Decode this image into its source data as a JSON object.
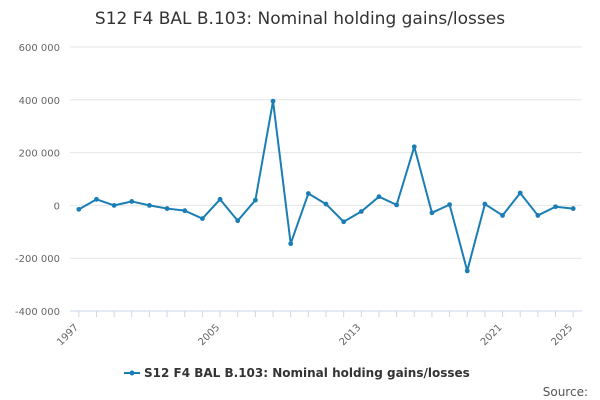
{
  "chart_data": {
    "type": "line",
    "title": "S12 F4 BAL B.103: Nominal holding gains/losses",
    "xlabel": "",
    "ylabel": "",
    "x": [
      1997,
      1998,
      1999,
      2000,
      2001,
      2002,
      2003,
      2004,
      2005,
      2006,
      2007,
      2008,
      2009,
      2010,
      2011,
      2012,
      2013,
      2014,
      2015,
      2016,
      2017,
      2018,
      2019,
      2020,
      2021,
      2022,
      2023,
      2024,
      2025
    ],
    "x_tick_values": [
      1997,
      2005,
      2013,
      2021,
      2025
    ],
    "x_tick_labels": [
      "1997",
      "2005",
      "2013",
      "2021",
      "2025"
    ],
    "xlim": [
      1996.5,
      2025.5
    ],
    "ylim": [
      -400000,
      600000
    ],
    "y_tick_values": [
      600000,
      400000,
      200000,
      0,
      -200000,
      -400000
    ],
    "y_tick_labels": [
      "600 000",
      "400 000",
      "200 000",
      "0",
      "-200 000",
      "-400 000"
    ],
    "grid": "horizontal",
    "legend_position": "bottom-center",
    "series": [
      {
        "name": "S12 F4 BAL B.103: Nominal holding gains/losses",
        "color": "#1a7eb5",
        "values": [
          -15000,
          23000,
          0,
          15000,
          0,
          -12000,
          -20000,
          -50000,
          23000,
          -58000,
          20000,
          395000,
          -145000,
          45000,
          5000,
          -62000,
          -23000,
          33000,
          2000,
          222000,
          -28000,
          3000,
          -248000,
          5000,
          -38000,
          47000,
          -38000,
          -5000,
          -12000
        ]
      }
    ]
  },
  "footer": {
    "source_label": "Source:"
  }
}
